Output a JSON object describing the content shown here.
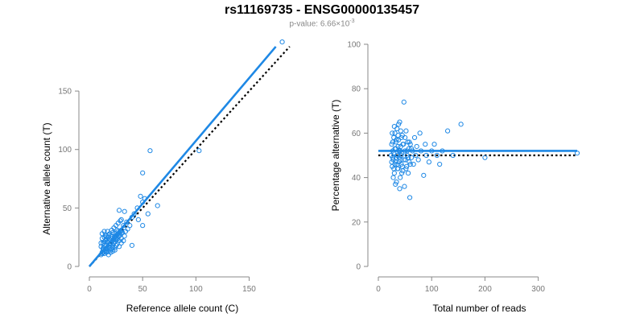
{
  "title": "rs11169735 - ENSG00000135457",
  "subtitle_prefix": "p-value: 6.66×10",
  "subtitle_exp": "-3",
  "colors": {
    "points": "#1e88e5",
    "fit_line": "#1e88e5",
    "expected_line": "#000000",
    "axis": "#888888"
  },
  "chart_data": [
    {
      "type": "scatter",
      "xlabel": "Reference allele count (C)",
      "ylabel": "Alternative allele count (T)",
      "xlim": [
        0,
        170
      ],
      "ylim": [
        0,
        190
      ],
      "xticks": [
        0,
        50,
        100,
        150
      ],
      "yticks": [
        0,
        50,
        100,
        150
      ],
      "fit_line": {
        "x": [
          0,
          175
        ],
        "y": [
          0,
          188
        ]
      },
      "expected_line": {
        "x": [
          0,
          188
        ],
        "y": [
          0,
          188
        ]
      },
      "points": [
        [
          12,
          12
        ],
        [
          13,
          15
        ],
        [
          14,
          11
        ],
        [
          11,
          17
        ],
        [
          15,
          14
        ],
        [
          16,
          18
        ],
        [
          13,
          20
        ],
        [
          17,
          13
        ],
        [
          18,
          22
        ],
        [
          14,
          25
        ],
        [
          12,
          28
        ],
        [
          19,
          16
        ],
        [
          20,
          19
        ],
        [
          15,
          22
        ],
        [
          16,
          12
        ],
        [
          21,
          24
        ],
        [
          22,
          18
        ],
        [
          18,
          27
        ],
        [
          13,
          14
        ],
        [
          14,
          18
        ],
        [
          17,
          21
        ],
        [
          19,
          23
        ],
        [
          20,
          26
        ],
        [
          23,
          20
        ],
        [
          24,
          28
        ],
        [
          25,
          23
        ],
        [
          21,
          15
        ],
        [
          22,
          29
        ],
        [
          26,
          25
        ],
        [
          27,
          30
        ],
        [
          28,
          22
        ],
        [
          29,
          27
        ],
        [
          30,
          24
        ],
        [
          25,
          18
        ],
        [
          26,
          31
        ],
        [
          24,
          14
        ],
        [
          31,
          29
        ],
        [
          32,
          35
        ],
        [
          33,
          26
        ],
        [
          34,
          30
        ],
        [
          35,
          38
        ],
        [
          36,
          32
        ],
        [
          30,
          40
        ],
        [
          38,
          35
        ],
        [
          40,
          42
        ],
        [
          28,
          48
        ],
        [
          33,
          47
        ],
        [
          42,
          45
        ],
        [
          45,
          50
        ],
        [
          46,
          40
        ],
        [
          48,
          60
        ],
        [
          50,
          55
        ],
        [
          52,
          58
        ],
        [
          55,
          45
        ],
        [
          40,
          18
        ],
        [
          50,
          80
        ],
        [
          50,
          35
        ],
        [
          57,
          99
        ],
        [
          64,
          52
        ],
        [
          103,
          99
        ],
        [
          181,
          192
        ],
        [
          11,
          10
        ],
        [
          12,
          11
        ],
        [
          13,
          12
        ],
        [
          15,
          13
        ],
        [
          16,
          15
        ],
        [
          17,
          16
        ],
        [
          18,
          17
        ],
        [
          19,
          18
        ],
        [
          20,
          20
        ],
        [
          21,
          21
        ],
        [
          22,
          22
        ],
        [
          23,
          23
        ],
        [
          24,
          25
        ],
        [
          25,
          26
        ],
        [
          26,
          27
        ],
        [
          27,
          28
        ],
        [
          28,
          29
        ],
        [
          29,
          30
        ],
        [
          30,
          31
        ],
        [
          14,
          30
        ],
        [
          16,
          26
        ],
        [
          18,
          10
        ],
        [
          20,
          12
        ],
        [
          22,
          13
        ],
        [
          24,
          16
        ],
        [
          26,
          19
        ],
        [
          28,
          17
        ],
        [
          30,
          20
        ],
        [
          32,
          22
        ],
        [
          11,
          20
        ],
        [
          12,
          24
        ],
        [
          15,
          27
        ],
        [
          17,
          30
        ],
        [
          19,
          28
        ],
        [
          21,
          31
        ],
        [
          23,
          33
        ],
        [
          25,
          35
        ],
        [
          27,
          37
        ],
        [
          29,
          39
        ],
        [
          13,
          16
        ],
        [
          14,
          21
        ],
        [
          16,
          23
        ],
        [
          18,
          25
        ],
        [
          20,
          14
        ],
        [
          22,
          16
        ],
        [
          24,
          21
        ],
        [
          26,
          23
        ],
        [
          28,
          26
        ],
        [
          30,
          28
        ]
      ]
    },
    {
      "type": "scatter",
      "xlabel": "Total number of reads",
      "ylabel": "Percentage alternative (T)",
      "xlim": [
        0,
        370
      ],
      "ylim": [
        0,
        100
      ],
      "xticks": [
        0,
        100,
        200,
        300
      ],
      "yticks": [
        0,
        20,
        40,
        60,
        80,
        100
      ],
      "fit_line": {
        "x": [
          0,
          373
        ],
        "y": [
          52,
          52
        ]
      },
      "expected_line": {
        "x": [
          0,
          373
        ],
        "y": [
          50,
          50
        ]
      },
      "points": [
        [
          24,
          50
        ],
        [
          25,
          55
        ],
        [
          26,
          45
        ],
        [
          27,
          52
        ],
        [
          28,
          48
        ],
        [
          29,
          58
        ],
        [
          30,
          42
        ],
        [
          31,
          60
        ],
        [
          32,
          47
        ],
        [
          33,
          53
        ],
        [
          34,
          38
        ],
        [
          35,
          62
        ],
        [
          36,
          50
        ],
        [
          37,
          44
        ],
        [
          38,
          57
        ],
        [
          39,
          49
        ],
        [
          40,
          65
        ],
        [
          41,
          40
        ],
        [
          42,
          54
        ],
        [
          43,
          46
        ],
        [
          44,
          51
        ],
        [
          45,
          59
        ],
        [
          46,
          43
        ],
        [
          47,
          55
        ],
        [
          48,
          74
        ],
        [
          49,
          36
        ],
        [
          50,
          52
        ],
        [
          51,
          48
        ],
        [
          52,
          61
        ],
        [
          53,
          45
        ],
        [
          54,
          50
        ],
        [
          55,
          56
        ],
        [
          56,
          42
        ],
        [
          57,
          53
        ],
        [
          58,
          47
        ],
        [
          59,
          31
        ],
        [
          60,
          55
        ],
        [
          62,
          49
        ],
        [
          64,
          52
        ],
        [
          66,
          46
        ],
        [
          68,
          58
        ],
        [
          70,
          50
        ],
        [
          72,
          54
        ],
        [
          75,
          48
        ],
        [
          78,
          60
        ],
        [
          80,
          52
        ],
        [
          85,
          41
        ],
        [
          88,
          55
        ],
        [
          90,
          50
        ],
        [
          95,
          47
        ],
        [
          100,
          52
        ],
        [
          105,
          55
        ],
        [
          110,
          50
        ],
        [
          115,
          46
        ],
        [
          120,
          52
        ],
        [
          130,
          61
        ],
        [
          140,
          50
        ],
        [
          155,
          64
        ],
        [
          200,
          49
        ],
        [
          373,
          51
        ],
        [
          26,
          60
        ],
        [
          28,
          40
        ],
        [
          30,
          63
        ],
        [
          32,
          37
        ],
        [
          34,
          57
        ],
        [
          36,
          44
        ],
        [
          38,
          64
        ],
        [
          40,
          35
        ],
        [
          42,
          61
        ],
        [
          44,
          42
        ],
        [
          46,
          55
        ],
        [
          48,
          48
        ],
        [
          50,
          58
        ],
        [
          52,
          44
        ],
        [
          54,
          52
        ],
        [
          56,
          49
        ],
        [
          58,
          56
        ],
        [
          60,
          46
        ],
        [
          62,
          53
        ],
        [
          27,
          49
        ],
        [
          29,
          51
        ],
        [
          31,
          46
        ],
        [
          33,
          56
        ],
        [
          35,
          50
        ],
        [
          37,
          54
        ],
        [
          39,
          47
        ],
        [
          41,
          52
        ],
        [
          43,
          58
        ],
        [
          45,
          45
        ],
        [
          25,
          47
        ],
        [
          27,
          56
        ],
        [
          29,
          44
        ],
        [
          31,
          53
        ],
        [
          33,
          49
        ],
        [
          35,
          46
        ],
        [
          37,
          59
        ],
        [
          39,
          52
        ],
        [
          41,
          48
        ],
        [
          43,
          50
        ]
      ]
    }
  ]
}
